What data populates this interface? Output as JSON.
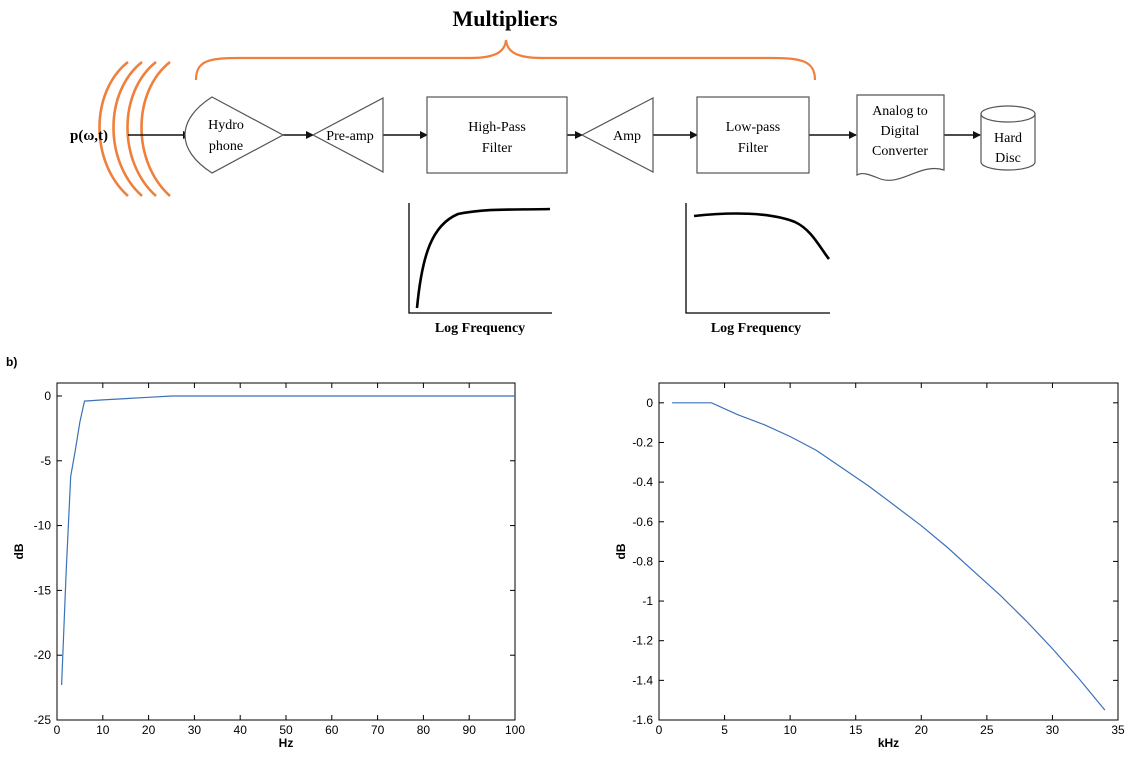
{
  "diagram": {
    "title": "Multipliers",
    "input_label": "p(ω,t)",
    "accent_color": "#f07f3c",
    "blocks": {
      "hydrophone": [
        "Hydro",
        "phone"
      ],
      "preamp": "Pre-amp",
      "highpass": [
        "High-Pass",
        "Filter"
      ],
      "amp": "Amp",
      "lowpass": [
        "Low-pass",
        "Filter"
      ],
      "adc": [
        "Analog to",
        "Digital",
        "Converter"
      ],
      "hard_disc": [
        "Hard",
        "Disc"
      ]
    },
    "sketch_xlabels": [
      "Log Frequency",
      "Log Frequency"
    ]
  },
  "panel_label": "b)",
  "chart_data": [
    {
      "type": "line",
      "xlabel": "Hz",
      "ylabel": "dB",
      "xlim": [
        0,
        100
      ],
      "ylim": [
        -25,
        1
      ],
      "xticks": [
        0,
        10,
        20,
        30,
        40,
        50,
        60,
        70,
        80,
        90,
        100
      ],
      "yticks": [
        0,
        -5,
        -10,
        -15,
        -20,
        -25
      ],
      "line_color": "#3b72b8",
      "x": [
        1,
        2,
        3,
        4,
        5,
        6,
        8,
        10,
        15,
        20,
        25,
        30,
        40,
        50,
        100
      ],
      "y": [
        -22.3,
        -13.5,
        -6.2,
        -4.2,
        -2.0,
        -0.4,
        -0.35,
        -0.3,
        -0.2,
        -0.1,
        0,
        0,
        0,
        0,
        0
      ]
    },
    {
      "type": "line",
      "xlabel": "kHz",
      "ylabel": "dB",
      "xlim": [
        0,
        35
      ],
      "ylim": [
        -1.6,
        0.1
      ],
      "xticks": [
        0,
        5,
        10,
        15,
        20,
        25,
        30,
        35
      ],
      "yticks": [
        0,
        -0.2,
        -0.4,
        -0.6,
        -0.8,
        -1,
        -1.2,
        -1.4,
        -1.6
      ],
      "ytick_labels": [
        "0",
        "-0.2",
        "-0.4",
        "-0.6",
        "-0.8",
        "-1",
        "-1.2",
        "-1.4",
        "-1.6"
      ],
      "line_color": "#3b72b8",
      "x": [
        1,
        4,
        6,
        8,
        10,
        12,
        14,
        16,
        18,
        20,
        22,
        24,
        26,
        28,
        30,
        32,
        34
      ],
      "y": [
        0,
        0,
        -0.06,
        -0.11,
        -0.17,
        -0.24,
        -0.33,
        -0.42,
        -0.52,
        -0.62,
        -0.73,
        -0.85,
        -0.97,
        -1.1,
        -1.24,
        -1.39,
        -1.55
      ]
    }
  ]
}
